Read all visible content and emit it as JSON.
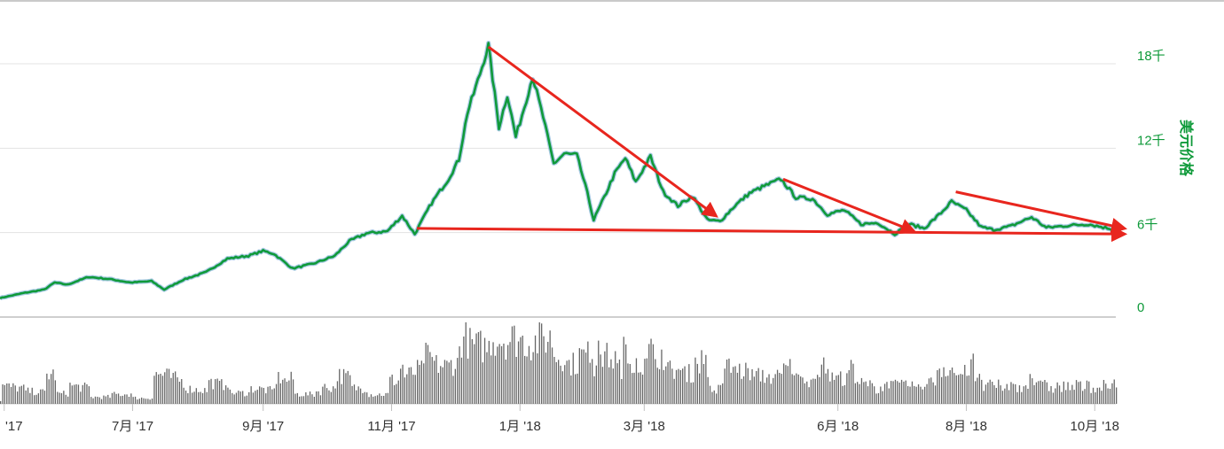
{
  "chart_data": {
    "type": "line",
    "ylabel": "美元价格",
    "y_ticks": [
      {
        "value": 0,
        "label": "0"
      },
      {
        "value": 6000,
        "label": "6千"
      },
      {
        "value": 12000,
        "label": "12千"
      },
      {
        "value": 18000,
        "label": "18千"
      }
    ],
    "ylim": [
      0,
      20000
    ],
    "x_ticks": [
      {
        "date": "2017-05-01",
        "label": "'17"
      },
      {
        "date": "2017-07-01",
        "label": "7月 '17"
      },
      {
        "date": "2017-09-01",
        "label": "9月 '17"
      },
      {
        "date": "2017-11-01",
        "label": "11月 '17"
      },
      {
        "date": "2018-01-01",
        "label": "1月 '18"
      },
      {
        "date": "2018-03-01",
        "label": "3月 '18"
      },
      {
        "date": "2018-06-01",
        "label": "6月 '18"
      },
      {
        "date": "2018-08-01",
        "label": "8月 '18"
      },
      {
        "date": "2018-10-01",
        "label": "10月 '18"
      }
    ],
    "xlim": [
      "2017-04-29",
      "2018-10-11"
    ],
    "grid": true,
    "series": [
      {
        "color": "#0f9a3a",
        "points": [
          [
            "2017-04-29",
            1350
          ],
          [
            "2017-05-10",
            1700
          ],
          [
            "2017-05-20",
            1950
          ],
          [
            "2017-05-25",
            2450
          ],
          [
            "2017-05-31",
            2300
          ],
          [
            "2017-06-10",
            2850
          ],
          [
            "2017-06-20",
            2700
          ],
          [
            "2017-06-30",
            2450
          ],
          [
            "2017-07-10",
            2550
          ],
          [
            "2017-07-16",
            1950
          ],
          [
            "2017-07-25",
            2650
          ],
          [
            "2017-08-05",
            3200
          ],
          [
            "2017-08-15",
            4150
          ],
          [
            "2017-08-25",
            4350
          ],
          [
            "2017-09-01",
            4700
          ],
          [
            "2017-09-06",
            4500
          ],
          [
            "2017-09-15",
            3450
          ],
          [
            "2017-09-25",
            3800
          ],
          [
            "2017-10-05",
            4350
          ],
          [
            "2017-10-12",
            5400
          ],
          [
            "2017-10-20",
            5950
          ],
          [
            "2017-10-30",
            6100
          ],
          [
            "2017-11-06",
            7200
          ],
          [
            "2017-11-12",
            5900
          ],
          [
            "2017-11-20",
            8100
          ],
          [
            "2017-11-28",
            9800
          ],
          [
            "2017-12-03",
            11200
          ],
          [
            "2017-12-07",
            14500
          ],
          [
            "2017-12-12",
            16800
          ],
          [
            "2017-12-17",
            19300
          ],
          [
            "2017-12-22",
            13500
          ],
          [
            "2017-12-26",
            15800
          ],
          [
            "2017-12-30",
            12800
          ],
          [
            "2018-01-03",
            14900
          ],
          [
            "2018-01-07",
            17100
          ],
          [
            "2018-01-12",
            14200
          ],
          [
            "2018-01-17",
            10900
          ],
          [
            "2018-01-22",
            11600
          ],
          [
            "2018-01-28",
            11500
          ],
          [
            "2018-02-02",
            8800
          ],
          [
            "2018-02-05",
            6900
          ],
          [
            "2018-02-10",
            8500
          ],
          [
            "2018-02-15",
            10200
          ],
          [
            "2018-02-20",
            11300
          ],
          [
            "2018-02-25",
            9600
          ],
          [
            "2018-03-04",
            11400
          ],
          [
            "2018-03-10",
            8900
          ],
          [
            "2018-03-17",
            7900
          ],
          [
            "2018-03-24",
            8600
          ],
          [
            "2018-03-31",
            6900
          ],
          [
            "2018-04-06",
            6800
          ],
          [
            "2018-04-13",
            7900
          ],
          [
            "2018-04-20",
            8800
          ],
          [
            "2018-04-27",
            9300
          ],
          [
            "2018-05-05",
            9800
          ],
          [
            "2018-05-12",
            8500
          ],
          [
            "2018-05-20",
            8400
          ],
          [
            "2018-05-27",
            7300
          ],
          [
            "2018-06-04",
            7600
          ],
          [
            "2018-06-12",
            6600
          ],
          [
            "2018-06-20",
            6700
          ],
          [
            "2018-06-28",
            5900
          ],
          [
            "2018-07-05",
            6600
          ],
          [
            "2018-07-12",
            6300
          ],
          [
            "2018-07-20",
            7400
          ],
          [
            "2018-07-25",
            8200
          ],
          [
            "2018-08-01",
            7600
          ],
          [
            "2018-08-08",
            6400
          ],
          [
            "2018-08-14",
            6200
          ],
          [
            "2018-08-22",
            6450
          ],
          [
            "2018-09-01",
            7100
          ],
          [
            "2018-09-08",
            6350
          ],
          [
            "2018-09-18",
            6500
          ],
          [
            "2018-09-28",
            6600
          ],
          [
            "2018-10-11",
            6200
          ]
        ]
      }
    ],
    "volume_series": {
      "color": "#666666"
    },
    "annotations": [
      {
        "type": "arrow",
        "color": "#e8261e",
        "from": [
          "2017-12-17",
          19200
        ],
        "to": [
          "2018-04-04",
          7200
        ]
      },
      {
        "type": "arrow",
        "color": "#e8261e",
        "from": [
          "2018-05-06",
          9800
        ],
        "to": [
          "2018-07-07",
          6100
        ]
      },
      {
        "type": "arrow",
        "color": "#e8261e",
        "from": [
          "2018-07-27",
          8900
        ],
        "to": [
          "2018-10-15",
          6300
        ]
      },
      {
        "type": "arrow",
        "color": "#e8261e",
        "from": [
          "2017-11-13",
          6300
        ],
        "to": [
          "2018-10-15",
          5900
        ]
      }
    ]
  }
}
